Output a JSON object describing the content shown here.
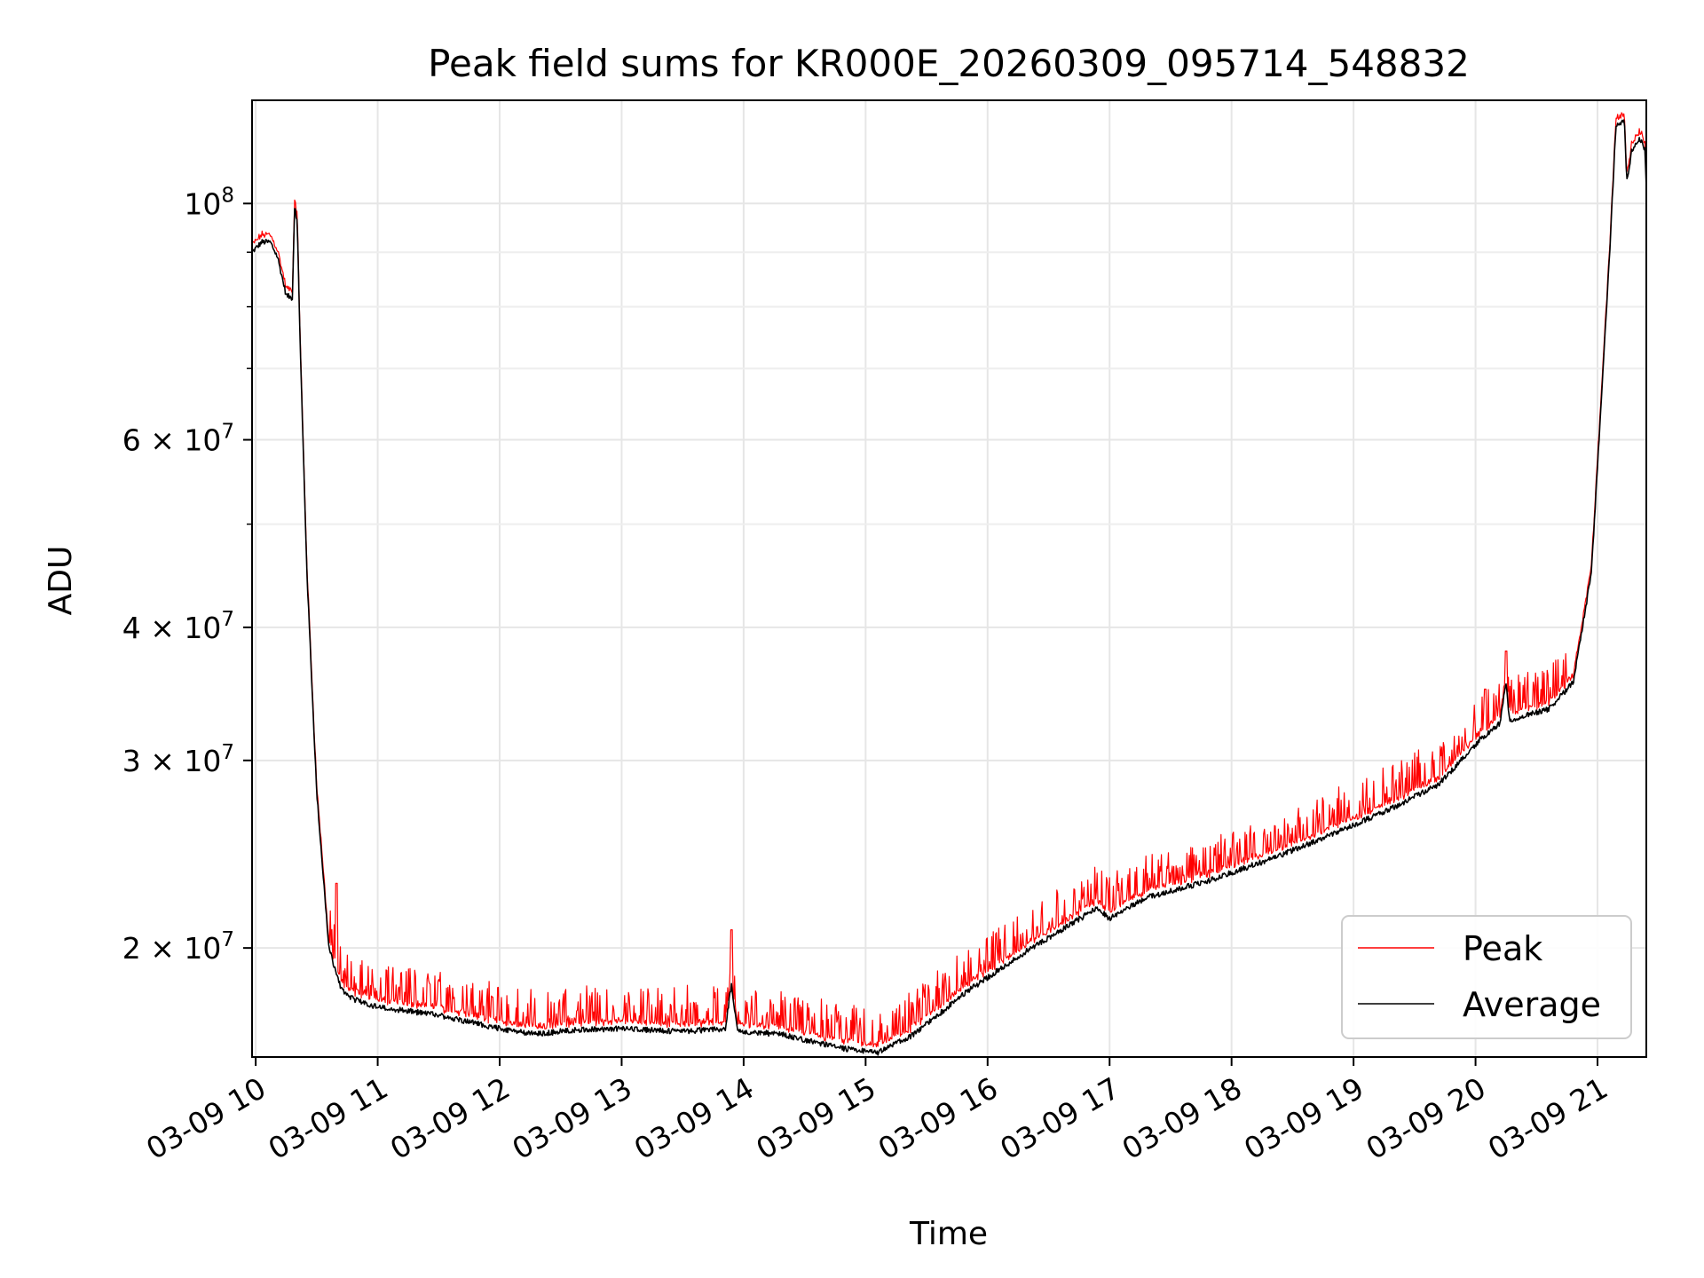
{
  "chart_data": {
    "type": "line",
    "title": "Peak field sums for KR000E_20260309_095714_548832",
    "xlabel": "Time",
    "ylabel": "ADU",
    "yscale": "log",
    "xlim_hours": [
      9.97,
      21.4
    ],
    "ylim": [
      15800000,
      125000000
    ],
    "grid": true,
    "legend_position": "lower-right",
    "xticks": [
      {
        "v": 10,
        "label": "03-09 10"
      },
      {
        "v": 11,
        "label": "03-09 11"
      },
      {
        "v": 12,
        "label": "03-09 12"
      },
      {
        "v": 13,
        "label": "03-09 13"
      },
      {
        "v": 14,
        "label": "03-09 14"
      },
      {
        "v": 15,
        "label": "03-09 15"
      },
      {
        "v": 16,
        "label": "03-09 16"
      },
      {
        "v": 17,
        "label": "03-09 17"
      },
      {
        "v": 18,
        "label": "03-09 18"
      },
      {
        "v": 19,
        "label": "03-09 19"
      },
      {
        "v": 20,
        "label": "03-09 20"
      },
      {
        "v": 21,
        "label": "03-09 21"
      }
    ],
    "yticks_major": [
      {
        "v": 100000000,
        "base": "10",
        "exp": "8"
      },
      {
        "v": 60000000,
        "base": "6 × 10",
        "exp": "7"
      },
      {
        "v": 40000000,
        "base": "4 × 10",
        "exp": "7"
      },
      {
        "v": 30000000,
        "base": "3 × 10",
        "exp": "7"
      },
      {
        "v": 20000000,
        "base": "2 × 10",
        "exp": "7"
      }
    ],
    "yticks_minor": [
      90000000,
      80000000,
      70000000,
      50000000
    ],
    "series": [
      {
        "name": "Peak",
        "color": "#ff0000",
        "spiky": true
      },
      {
        "name": "Average",
        "color": "#000000",
        "spiky": false
      }
    ],
    "average_profile": {
      "x": [
        9.97,
        10.05,
        10.12,
        10.18,
        10.25,
        10.3,
        10.32,
        10.34,
        10.37,
        10.42,
        10.5,
        10.6,
        10.7,
        10.8,
        11,
        11.5,
        12,
        12.3,
        12.6,
        13,
        13.5,
        13.85,
        13.9,
        13.95,
        14.3,
        14.8,
        15.1,
        15.4,
        15.8,
        16.3,
        16.9,
        17.0,
        17.3,
        17.8,
        18.3,
        18.8,
        19.3,
        19.7,
        20.05,
        20.2,
        20.25,
        20.28,
        20.3,
        20.6,
        20.8,
        20.95,
        21.1,
        21.15,
        21.22,
        21.24,
        21.28,
        21.35,
        21.39,
        21.4
      ],
      "y": [
        90000000,
        92000000,
        92000000,
        89000000,
        82000000,
        81500000,
        100000000,
        96000000,
        70000000,
        45000000,
        28000000,
        20000000,
        18300000,
        17900000,
        17600000,
        17300000,
        16800000,
        16600000,
        16750000,
        16800000,
        16700000,
        16800000,
        18500000,
        16700000,
        16600000,
        16100000,
        15950000,
        16600000,
        18100000,
        19800000,
        21800000,
        21300000,
        22300000,
        23100000,
        24200000,
        25500000,
        27000000,
        28500000,
        31500000,
        32500000,
        35500000,
        32500000,
        32800000,
        33500000,
        35500000,
        45000000,
        90000000,
        118000000,
        120000000,
        105000000,
        112000000,
        115000000,
        112000000,
        103000000
      ]
    }
  }
}
